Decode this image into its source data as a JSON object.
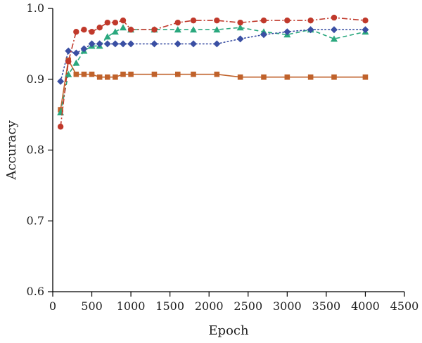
{
  "chart_data": {
    "type": "line",
    "xlabel": "Epoch",
    "ylabel": "Accuracy",
    "xlim": [
      0,
      4500
    ],
    "ylim": [
      0.6,
      1.0
    ],
    "xticks": [
      0,
      500,
      1000,
      1500,
      2000,
      2500,
      3000,
      3500,
      4000,
      4500
    ],
    "yticks": [
      0.6,
      0.7,
      0.8,
      0.9,
      1.0
    ],
    "xtick_labels": [
      "0",
      "500",
      "1000",
      "1500",
      "2000",
      "2500",
      "3000",
      "3500",
      "4000",
      "4500"
    ],
    "ytick_labels": [
      "0.6",
      "0.7",
      "0.8",
      "0.9",
      "1.0"
    ],
    "grid": false,
    "legend": "none",
    "series": [
      {
        "color": "#c0392b",
        "marker": "circle",
        "line_style": "dash-dot",
        "points": [
          [
            100,
            0.833
          ],
          [
            200,
            0.925
          ],
          [
            300,
            0.967
          ],
          [
            400,
            0.97
          ],
          [
            500,
            0.967
          ],
          [
            600,
            0.973
          ],
          [
            700,
            0.98
          ],
          [
            800,
            0.98
          ],
          [
            900,
            0.983
          ],
          [
            1000,
            0.97
          ],
          [
            1300,
            0.97
          ],
          [
            1600,
            0.98
          ],
          [
            1800,
            0.983
          ],
          [
            2100,
            0.983
          ],
          [
            2400,
            0.98
          ],
          [
            2700,
            0.983
          ],
          [
            3000,
            0.983
          ],
          [
            3300,
            0.983
          ],
          [
            3600,
            0.987
          ],
          [
            4000,
            0.983
          ]
        ]
      },
      {
        "color": "#3a4fa3",
        "marker": "diamond",
        "line_style": "dotted",
        "points": [
          [
            100,
            0.897
          ],
          [
            200,
            0.94
          ],
          [
            300,
            0.937
          ],
          [
            400,
            0.943
          ],
          [
            500,
            0.95
          ],
          [
            600,
            0.95
          ],
          [
            700,
            0.95
          ],
          [
            800,
            0.95
          ],
          [
            900,
            0.95
          ],
          [
            1000,
            0.95
          ],
          [
            1300,
            0.95
          ],
          [
            1600,
            0.95
          ],
          [
            1800,
            0.95
          ],
          [
            2100,
            0.95
          ],
          [
            2400,
            0.957
          ],
          [
            2700,
            0.963
          ],
          [
            3000,
            0.967
          ],
          [
            3300,
            0.97
          ],
          [
            3600,
            0.97
          ],
          [
            4000,
            0.97
          ]
        ]
      },
      {
        "color": "#2aa87e",
        "marker": "triangle",
        "line_style": "dashed",
        "points": [
          [
            100,
            0.853
          ],
          [
            200,
            0.907
          ],
          [
            300,
            0.923
          ],
          [
            400,
            0.94
          ],
          [
            500,
            0.947
          ],
          [
            600,
            0.947
          ],
          [
            700,
            0.96
          ],
          [
            800,
            0.967
          ],
          [
            900,
            0.973
          ],
          [
            1000,
            0.97
          ],
          [
            1300,
            0.97
          ],
          [
            1600,
            0.97
          ],
          [
            1800,
            0.97
          ],
          [
            2100,
            0.97
          ],
          [
            2400,
            0.973
          ],
          [
            2700,
            0.967
          ],
          [
            3000,
            0.963
          ],
          [
            3300,
            0.97
          ],
          [
            3600,
            0.957
          ],
          [
            4000,
            0.967
          ]
        ]
      },
      {
        "color": "#c0622b",
        "marker": "square",
        "line_style": "solid",
        "points": [
          [
            100,
            0.857
          ],
          [
            200,
            0.927
          ],
          [
            300,
            0.907
          ],
          [
            400,
            0.907
          ],
          [
            500,
            0.907
          ],
          [
            600,
            0.903
          ],
          [
            700,
            0.903
          ],
          [
            800,
            0.903
          ],
          [
            900,
            0.907
          ],
          [
            1000,
            0.907
          ],
          [
            1300,
            0.907
          ],
          [
            1600,
            0.907
          ],
          [
            1800,
            0.907
          ],
          [
            2100,
            0.907
          ],
          [
            2400,
            0.903
          ],
          [
            2700,
            0.903
          ],
          [
            3000,
            0.903
          ],
          [
            3300,
            0.903
          ],
          [
            3600,
            0.903
          ],
          [
            4000,
            0.903
          ]
        ]
      }
    ]
  }
}
